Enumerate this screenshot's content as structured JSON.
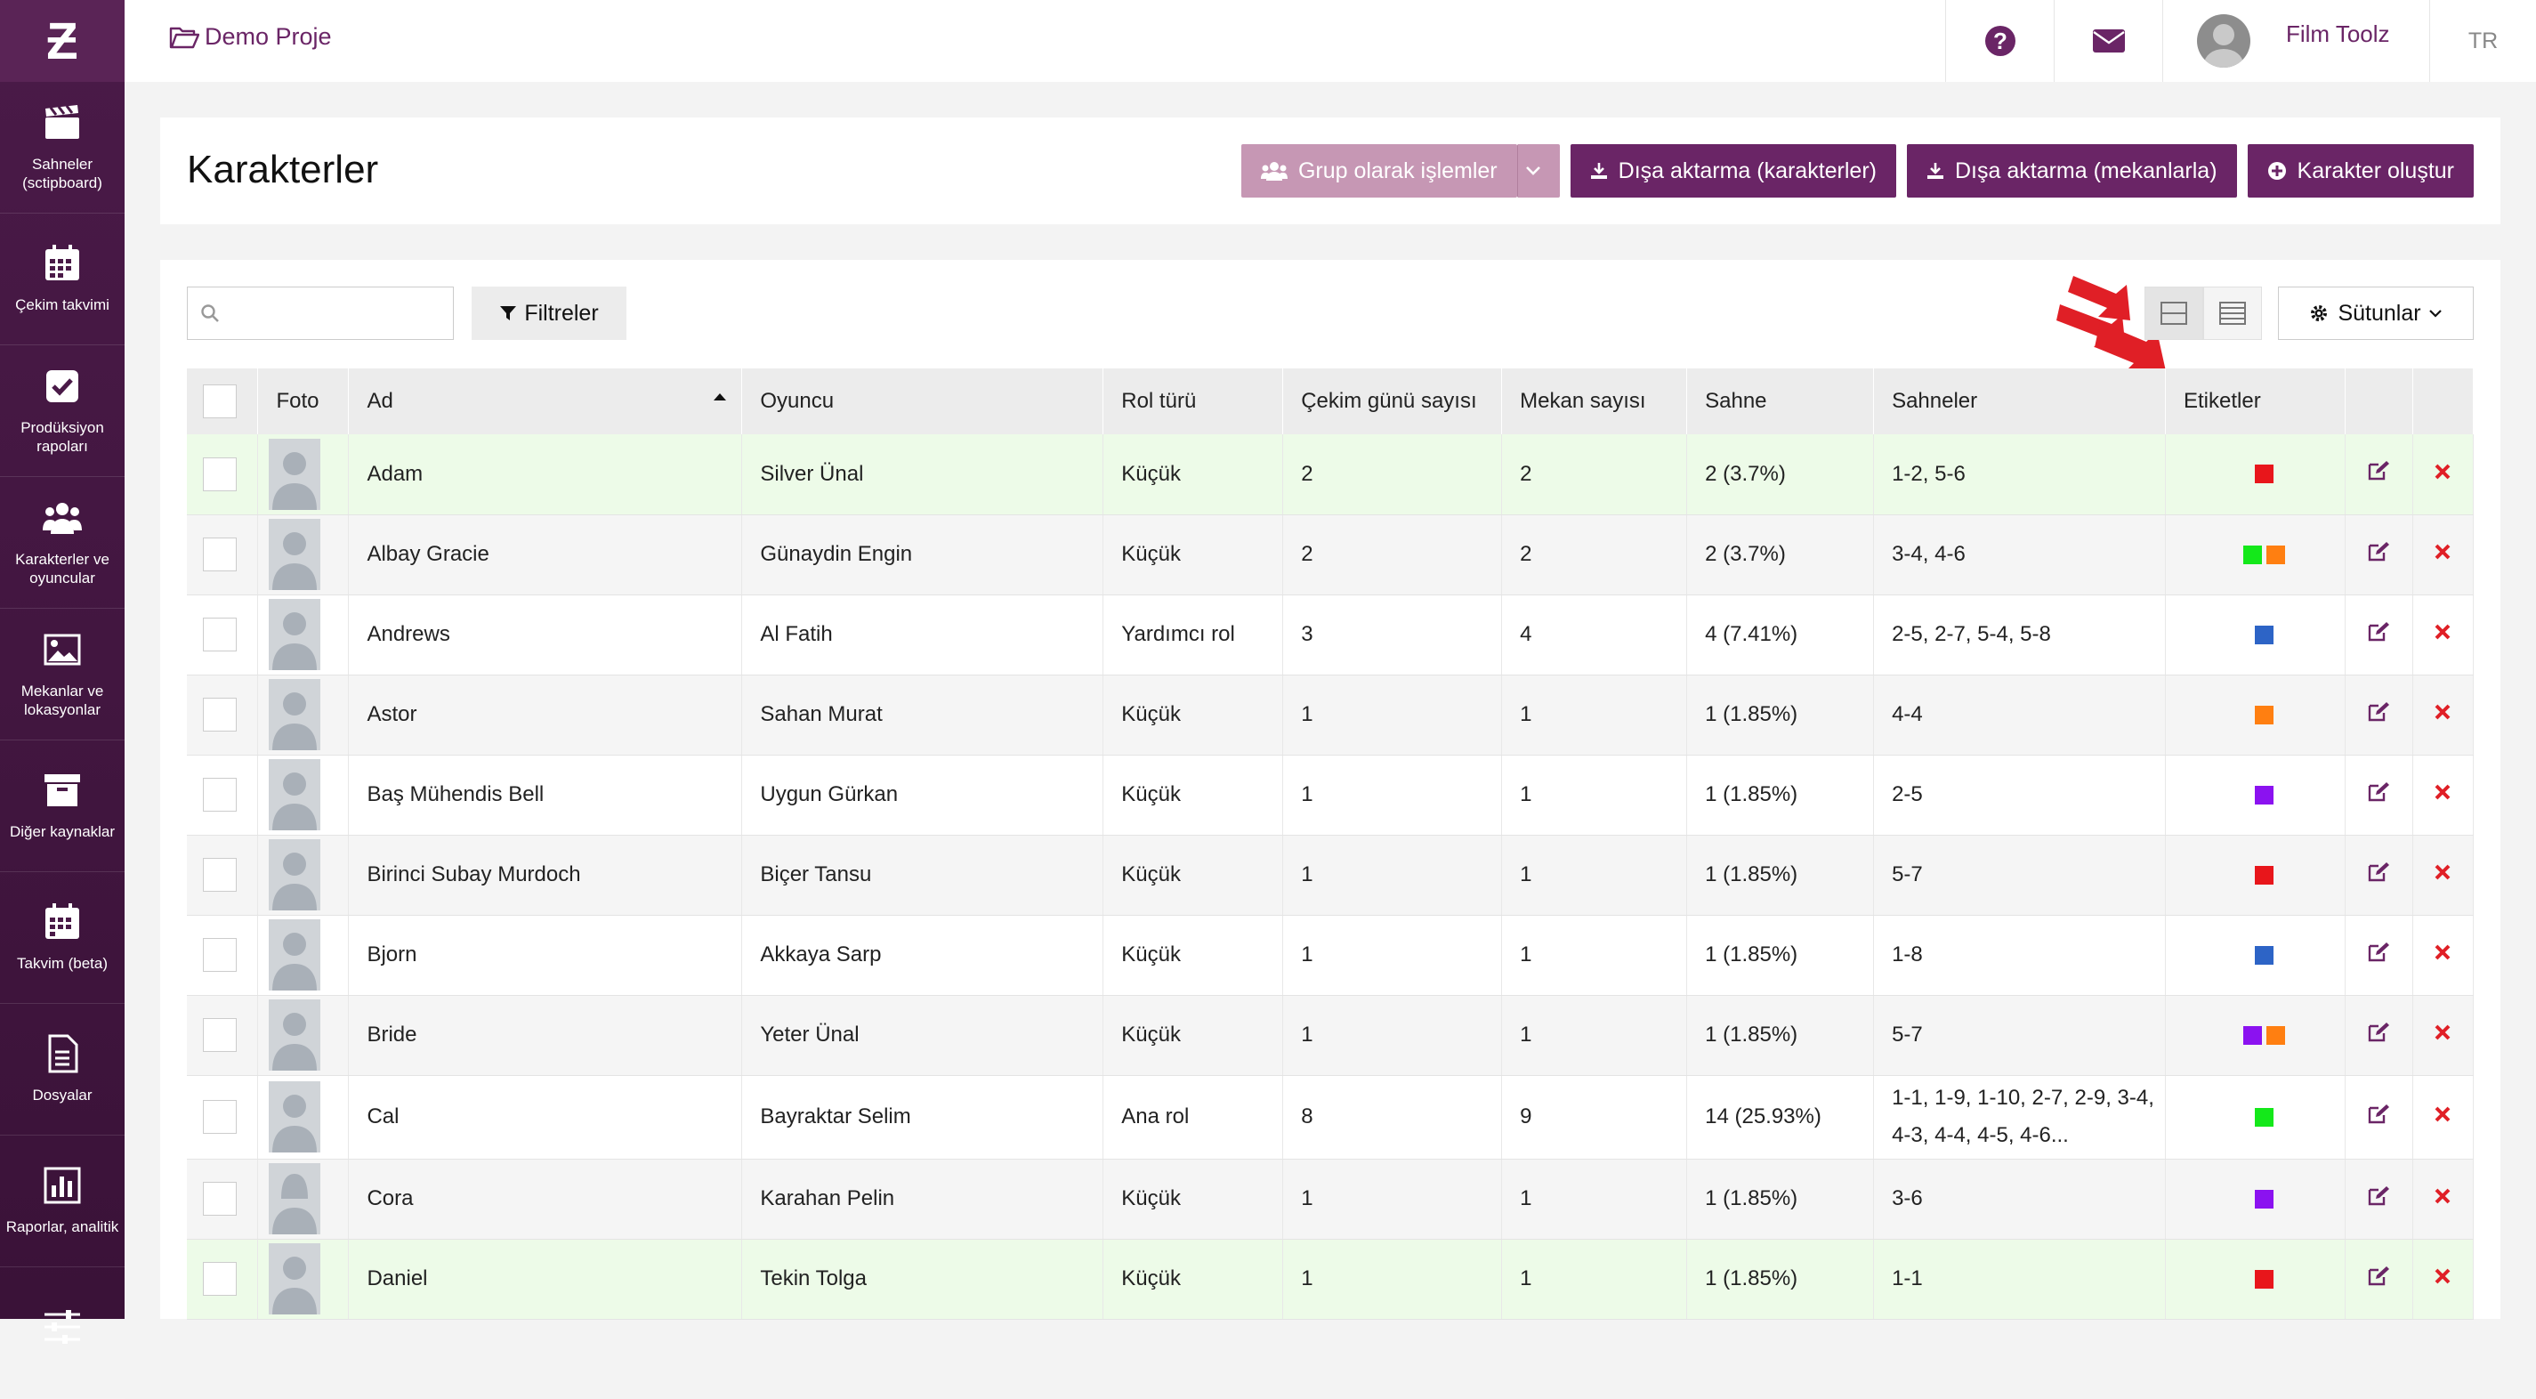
{
  "nav": {
    "logo": "Ƶ",
    "items": [
      {
        "icon": "clapperboard-icon",
        "label": "Sahneler (sctipboard)"
      },
      {
        "icon": "calendar-icon",
        "label": "Çekim takvimi"
      },
      {
        "icon": "checkbox-icon",
        "label": "Prodüksiyon rapoları"
      },
      {
        "icon": "users-icon",
        "label": "Karakterler ve oyuncular"
      },
      {
        "icon": "image-icon",
        "label": "Mekanlar ve lokasyonlar"
      },
      {
        "icon": "archive-icon",
        "label": "Diğer kaynaklar"
      },
      {
        "icon": "calendar-beta-icon",
        "label": "Takvim (beta)"
      },
      {
        "icon": "file-icon",
        "label": "Dosyalar"
      },
      {
        "icon": "bar-chart-icon",
        "label": "Raporlar, analitik"
      },
      {
        "icon": "sliders-icon",
        "label": ""
      }
    ]
  },
  "topbar": {
    "project": "Demo Proje",
    "user_name": "Film Toolz",
    "lang": "TR"
  },
  "header": {
    "title": "Karakterler",
    "group_btn": "Grup olarak işlemler",
    "export_chars": "Dışa aktarma (karakterler)",
    "export_locations": "Dışa aktarma (mekanlarla)",
    "create_char": "Karakter oluştur"
  },
  "toolbar": {
    "search_placeholder": "",
    "filters": "Filtreler",
    "columns": "Sütunlar"
  },
  "table": {
    "headers": {
      "photo": "Foto",
      "name": "Ad",
      "actor": "Oyuncu",
      "role": "Rol türü",
      "days": "Çekim günü sayısı",
      "locations": "Mekan sayısı",
      "scene": "Sahne",
      "scenes": "Sahneler",
      "tags": "Etiketler"
    },
    "colors": {
      "red": "#e8161b",
      "green": "#14e81a",
      "orange": "#ff7f11",
      "blue": "#2d64c6",
      "purple": "#8b12f0"
    },
    "rows": [
      {
        "name": "Adam",
        "actor": "Silver Ünal",
        "role": "Küçük",
        "days": "2",
        "locations": "2",
        "scene": "2 (3.7%)",
        "scenes": "1-2, 5-6",
        "tags": [
          "red"
        ],
        "gender": "male",
        "style": "hl"
      },
      {
        "name": "Albay Gracie",
        "actor": "Günaydin Engin",
        "role": "Küçük",
        "days": "2",
        "locations": "2",
        "scene": "2 (3.7%)",
        "scenes": "3-4, 4-6",
        "tags": [
          "green",
          "orange"
        ],
        "gender": "male",
        "style": "even"
      },
      {
        "name": "Andrews",
        "actor": "Al Fatih",
        "role": "Yardımcı rol",
        "days": "3",
        "locations": "4",
        "scene": "4 (7.41%)",
        "scenes": "2-5, 2-7, 5-4, 5-8",
        "tags": [
          "blue"
        ],
        "gender": "male",
        "style": "odd"
      },
      {
        "name": "Astor",
        "actor": "Sahan Murat",
        "role": "Küçük",
        "days": "1",
        "locations": "1",
        "scene": "1 (1.85%)",
        "scenes": "4-4",
        "tags": [
          "orange"
        ],
        "gender": "male",
        "style": "even"
      },
      {
        "name": "Baş Mühendis Bell",
        "actor": "Uygun Gürkan",
        "role": "Küçük",
        "days": "1",
        "locations": "1",
        "scene": "1 (1.85%)",
        "scenes": "2-5",
        "tags": [
          "purple"
        ],
        "gender": "male",
        "style": "odd"
      },
      {
        "name": "Birinci Subay Murdoch",
        "actor": "Biçer Tansu",
        "role": "Küçük",
        "days": "1",
        "locations": "1",
        "scene": "1 (1.85%)",
        "scenes": "5-7",
        "tags": [
          "red"
        ],
        "gender": "male",
        "style": "even"
      },
      {
        "name": "Bjorn",
        "actor": "Akkaya Sarp",
        "role": "Küçük",
        "days": "1",
        "locations": "1",
        "scene": "1 (1.85%)",
        "scenes": "1-8",
        "tags": [
          "blue"
        ],
        "gender": "male",
        "style": "odd"
      },
      {
        "name": "Bride",
        "actor": "Yeter Ünal",
        "role": "Küçük",
        "days": "1",
        "locations": "1",
        "scene": "1 (1.85%)",
        "scenes": "5-7",
        "tags": [
          "purple",
          "orange"
        ],
        "gender": "male",
        "style": "even"
      },
      {
        "name": "Cal",
        "actor": "Bayraktar Selim",
        "role": "Ana rol",
        "days": "8",
        "locations": "9",
        "scene": "14 (25.93%)",
        "scenes": "1-1, 1-9, 1-10, 2-7, 2-9, 3-4, 4-3, 4-4, 4-5, 4-6...",
        "tags": [
          "green"
        ],
        "gender": "male",
        "style": "odd",
        "tall": true
      },
      {
        "name": "Cora",
        "actor": "Karahan Pelin",
        "role": "Küçük",
        "days": "1",
        "locations": "1",
        "scene": "1 (1.85%)",
        "scenes": "3-6",
        "tags": [
          "purple"
        ],
        "gender": "female",
        "style": "even"
      },
      {
        "name": "Daniel",
        "actor": "Tekin Tolga",
        "role": "Küçük",
        "days": "1",
        "locations": "1",
        "scene": "1 (1.85%)",
        "scenes": "1-1",
        "tags": [
          "red"
        ],
        "gender": "male",
        "style": "hl"
      }
    ]
  }
}
